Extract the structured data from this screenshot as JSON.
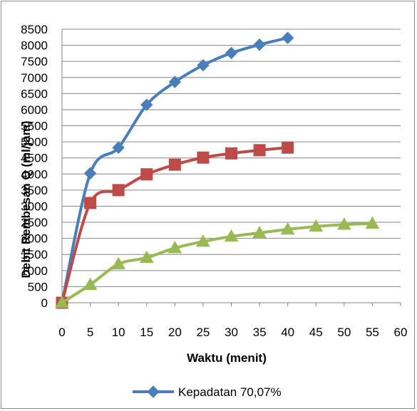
{
  "chart_data": {
    "type": "line",
    "xlabel": "Waktu (menit)",
    "ylabel": "Debit Rembesan Q (ml/jam)",
    "xlim": [
      0,
      60
    ],
    "ylim": [
      0,
      8500
    ],
    "x_ticks": [
      0,
      5,
      10,
      15,
      20,
      25,
      30,
      35,
      40,
      45,
      50,
      55,
      60
    ],
    "y_ticks": [
      0,
      500,
      1000,
      1500,
      2000,
      2500,
      3000,
      3500,
      4000,
      4500,
      5000,
      5500,
      6000,
      6500,
      7000,
      7500,
      8000,
      8500
    ],
    "grid": "horizontal",
    "legend_position": "bottom",
    "series": [
      {
        "name": "Kepadatan 70,07%",
        "color": "#4a7ebb",
        "marker": "diamond",
        "x": [
          0,
          5,
          10,
          15,
          20,
          25,
          30,
          35,
          40
        ],
        "values": [
          0,
          4020,
          4820,
          6150,
          6860,
          7380,
          7760,
          8020,
          8230
        ]
      },
      {
        "name": "",
        "color": "#be4b48",
        "marker": "square",
        "x": [
          0,
          5,
          10,
          15,
          20,
          25,
          30,
          35,
          40
        ],
        "values": [
          0,
          3100,
          3500,
          3990,
          4290,
          4510,
          4640,
          4740,
          4820
        ]
      },
      {
        "name": "",
        "color": "#98b954",
        "marker": "triangle",
        "x": [
          0,
          5,
          10,
          15,
          20,
          25,
          30,
          35,
          40,
          45,
          50,
          55
        ],
        "values": [
          0,
          560,
          1200,
          1400,
          1700,
          1900,
          2060,
          2170,
          2280,
          2370,
          2430,
          2460
        ]
      }
    ]
  }
}
